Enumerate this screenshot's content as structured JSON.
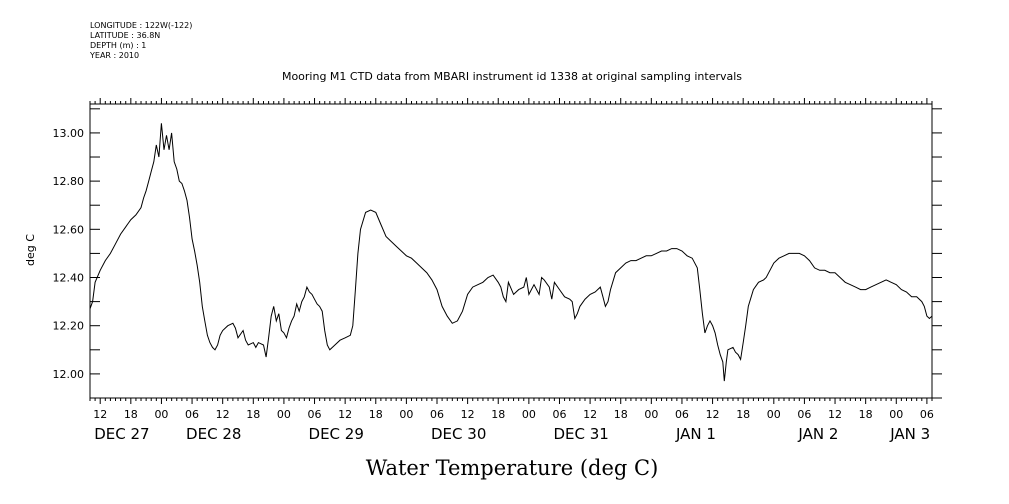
{
  "meta": {
    "longitude": "LONGITUDE : 122W(-122)",
    "latitude": "LATITUDE : 36.8N",
    "depth": "DEPTH (m) : 1",
    "year": "YEAR : 2010"
  },
  "chart_data": {
    "type": "line",
    "title": "Mooring M1 CTD data from MBARI instrument id 1338 at original sampling intervals",
    "xlabel": "Water Temperature (deg C)",
    "ylabel": "deg C",
    "xlim": [
      10,
      175
    ],
    "ylim": [
      11.9,
      13.12
    ],
    "yticks": [
      "12.00",
      "12.20",
      "12.40",
      "12.60",
      "12.80",
      "13.00"
    ],
    "hour_labels": [
      {
        "t": 12,
        "label": "12"
      },
      {
        "t": 18,
        "label": "18"
      },
      {
        "t": 24,
        "label": "00"
      },
      {
        "t": 30,
        "label": "06"
      },
      {
        "t": 36,
        "label": "12"
      },
      {
        "t": 42,
        "label": "18"
      },
      {
        "t": 48,
        "label": "00"
      },
      {
        "t": 54,
        "label": "06"
      },
      {
        "t": 60,
        "label": "12"
      },
      {
        "t": 66,
        "label": "18"
      },
      {
        "t": 72,
        "label": "00"
      },
      {
        "t": 78,
        "label": "06"
      },
      {
        "t": 84,
        "label": "12"
      },
      {
        "t": 90,
        "label": "18"
      },
      {
        "t": 96,
        "label": "00"
      },
      {
        "t": 102,
        "label": "06"
      },
      {
        "t": 108,
        "label": "12"
      },
      {
        "t": 114,
        "label": "18"
      },
      {
        "t": 120,
        "label": "00"
      },
      {
        "t": 126,
        "label": "06"
      },
      {
        "t": 132,
        "label": "12"
      },
      {
        "t": 138,
        "label": "18"
      },
      {
        "t": 144,
        "label": "00"
      },
      {
        "t": 150,
        "label": "06"
      },
      {
        "t": 156,
        "label": "12"
      },
      {
        "t": 162,
        "label": "18"
      },
      {
        "t": 168,
        "label": "00"
      },
      {
        "t": 174,
        "label": "06"
      }
    ],
    "day_labels": [
      {
        "t": 12,
        "label": "DEC 27"
      },
      {
        "t": 30,
        "label": "DEC 28"
      },
      {
        "t": 54,
        "label": "DEC 29"
      },
      {
        "t": 78,
        "label": "DEC 30"
      },
      {
        "t": 102,
        "label": "DEC 31"
      },
      {
        "t": 126,
        "label": "JAN  1"
      },
      {
        "t": 150,
        "label": "JAN  2"
      },
      {
        "t": 168,
        "label": "JAN  3"
      }
    ],
    "series": [
      {
        "color": "#000000",
        "points": [
          [
            10.0,
            12.27
          ],
          [
            10.5,
            12.3
          ],
          [
            11.0,
            12.38
          ],
          [
            12.0,
            12.43
          ],
          [
            13.0,
            12.47
          ],
          [
            14.0,
            12.5
          ],
          [
            15.0,
            12.54
          ],
          [
            16.0,
            12.58
          ],
          [
            17.0,
            12.61
          ],
          [
            18.0,
            12.64
          ],
          [
            19.0,
            12.66
          ],
          [
            20.0,
            12.69
          ],
          [
            20.5,
            12.73
          ],
          [
            21.0,
            12.76
          ],
          [
            21.5,
            12.8
          ],
          [
            22.0,
            12.84
          ],
          [
            22.5,
            12.88
          ],
          [
            23.0,
            12.95
          ],
          [
            23.5,
            12.9
          ],
          [
            24.0,
            13.04
          ],
          [
            24.5,
            12.93
          ],
          [
            25.0,
            12.99
          ],
          [
            25.5,
            12.93
          ],
          [
            26.0,
            13.0
          ],
          [
            26.5,
            12.88
          ],
          [
            27.0,
            12.85
          ],
          [
            27.5,
            12.8
          ],
          [
            28.0,
            12.79
          ],
          [
            28.5,
            12.76
          ],
          [
            29.0,
            12.72
          ],
          [
            29.5,
            12.65
          ],
          [
            30.0,
            12.56
          ],
          [
            30.5,
            12.51
          ],
          [
            31.0,
            12.45
          ],
          [
            31.5,
            12.38
          ],
          [
            32.0,
            12.28
          ],
          [
            32.5,
            12.22
          ],
          [
            33.0,
            12.16
          ],
          [
            33.5,
            12.13
          ],
          [
            34.0,
            12.11
          ],
          [
            34.5,
            12.1
          ],
          [
            35.0,
            12.12
          ],
          [
            35.5,
            12.16
          ],
          [
            36.0,
            12.18
          ],
          [
            37.0,
            12.2
          ],
          [
            38.0,
            12.21
          ],
          [
            38.5,
            12.19
          ],
          [
            39.0,
            12.15
          ],
          [
            40.0,
            12.18
          ],
          [
            40.5,
            12.14
          ],
          [
            41.0,
            12.12
          ],
          [
            42.0,
            12.13
          ],
          [
            42.5,
            12.11
          ],
          [
            43.0,
            12.13
          ],
          [
            44.0,
            12.12
          ],
          [
            44.5,
            12.07
          ],
          [
            45.0,
            12.15
          ],
          [
            45.5,
            12.24
          ],
          [
            46.0,
            12.28
          ],
          [
            46.5,
            12.22
          ],
          [
            47.0,
            12.25
          ],
          [
            47.5,
            12.18
          ],
          [
            48.0,
            12.17
          ],
          [
            48.5,
            12.15
          ],
          [
            49.0,
            12.19
          ],
          [
            49.5,
            12.22
          ],
          [
            50.0,
            12.24
          ],
          [
            50.5,
            12.29
          ],
          [
            51.0,
            12.26
          ],
          [
            51.5,
            12.3
          ],
          [
            52.0,
            12.32
          ],
          [
            52.5,
            12.36
          ],
          [
            53.0,
            12.34
          ],
          [
            53.5,
            12.33
          ],
          [
            54.0,
            12.31
          ],
          [
            54.5,
            12.29
          ],
          [
            55.0,
            12.28
          ],
          [
            55.5,
            12.26
          ],
          [
            56.0,
            12.18
          ],
          [
            56.5,
            12.12
          ],
          [
            57.0,
            12.1
          ],
          [
            58.0,
            12.12
          ],
          [
            59.0,
            12.14
          ],
          [
            60.0,
            12.15
          ],
          [
            61.0,
            12.16
          ],
          [
            61.5,
            12.2
          ],
          [
            62.0,
            12.35
          ],
          [
            62.5,
            12.5
          ],
          [
            63.0,
            12.6
          ],
          [
            64.0,
            12.67
          ],
          [
            65.0,
            12.68
          ],
          [
            66.0,
            12.67
          ],
          [
            67.0,
            12.62
          ],
          [
            68.0,
            12.57
          ],
          [
            69.0,
            12.55
          ],
          [
            70.0,
            12.53
          ],
          [
            71.0,
            12.51
          ],
          [
            72.0,
            12.49
          ],
          [
            73.0,
            12.48
          ],
          [
            74.0,
            12.46
          ],
          [
            75.0,
            12.44
          ],
          [
            76.0,
            12.42
          ],
          [
            77.0,
            12.39
          ],
          [
            78.0,
            12.35
          ],
          [
            79.0,
            12.28
          ],
          [
            80.0,
            12.24
          ],
          [
            81.0,
            12.21
          ],
          [
            82.0,
            12.22
          ],
          [
            83.0,
            12.26
          ],
          [
            84.0,
            12.33
          ],
          [
            85.0,
            12.36
          ],
          [
            86.0,
            12.37
          ],
          [
            87.0,
            12.38
          ],
          [
            88.0,
            12.4
          ],
          [
            89.0,
            12.41
          ],
          [
            90.0,
            12.38
          ],
          [
            90.5,
            12.36
          ],
          [
            91.0,
            12.32
          ],
          [
            91.5,
            12.3
          ],
          [
            92.0,
            12.38
          ],
          [
            93.0,
            12.33
          ],
          [
            94.0,
            12.35
          ],
          [
            95.0,
            12.36
          ],
          [
            95.5,
            12.4
          ],
          [
            96.0,
            12.33
          ],
          [
            97.0,
            12.37
          ],
          [
            98.0,
            12.33
          ],
          [
            98.5,
            12.4
          ],
          [
            99.0,
            12.39
          ],
          [
            100.0,
            12.36
          ],
          [
            100.5,
            12.31
          ],
          [
            101.0,
            12.38
          ],
          [
            102.0,
            12.35
          ],
          [
            103.0,
            12.32
          ],
          [
            104.0,
            12.31
          ],
          [
            104.5,
            12.3
          ],
          [
            105.0,
            12.23
          ],
          [
            105.5,
            12.25
          ],
          [
            106.0,
            12.28
          ],
          [
            107.0,
            12.31
          ],
          [
            108.0,
            12.33
          ],
          [
            109.0,
            12.34
          ],
          [
            110.0,
            12.36
          ],
          [
            110.5,
            12.32
          ],
          [
            111.0,
            12.28
          ],
          [
            111.5,
            12.3
          ],
          [
            112.0,
            12.35
          ],
          [
            113.0,
            12.42
          ],
          [
            114.0,
            12.44
          ],
          [
            115.0,
            12.46
          ],
          [
            116.0,
            12.47
          ],
          [
            117.0,
            12.47
          ],
          [
            118.0,
            12.48
          ],
          [
            119.0,
            12.49
          ],
          [
            120.0,
            12.49
          ],
          [
            121.0,
            12.5
          ],
          [
            122.0,
            12.51
          ],
          [
            123.0,
            12.51
          ],
          [
            124.0,
            12.52
          ],
          [
            125.0,
            12.52
          ],
          [
            126.0,
            12.51
          ],
          [
            127.0,
            12.49
          ],
          [
            128.0,
            12.48
          ],
          [
            129.0,
            12.44
          ],
          [
            129.5,
            12.35
          ],
          [
            130.0,
            12.25
          ],
          [
            130.5,
            12.17
          ],
          [
            131.0,
            12.2
          ],
          [
            131.5,
            12.22
          ],
          [
            132.0,
            12.2
          ],
          [
            132.5,
            12.17
          ],
          [
            133.0,
            12.12
          ],
          [
            133.5,
            12.08
          ],
          [
            134.0,
            12.05
          ],
          [
            134.3,
            11.97
          ],
          [
            134.7,
            12.05
          ],
          [
            135.0,
            12.1
          ],
          [
            136.0,
            12.11
          ],
          [
            136.5,
            12.09
          ],
          [
            137.0,
            12.08
          ],
          [
            137.5,
            12.06
          ],
          [
            138.0,
            12.13
          ],
          [
            138.5,
            12.2
          ],
          [
            139.0,
            12.28
          ],
          [
            140.0,
            12.35
          ],
          [
            141.0,
            12.38
          ],
          [
            142.0,
            12.39
          ],
          [
            142.5,
            12.4
          ],
          [
            143.0,
            12.42
          ],
          [
            144.0,
            12.46
          ],
          [
            145.0,
            12.48
          ],
          [
            146.0,
            12.49
          ],
          [
            147.0,
            12.5
          ],
          [
            148.0,
            12.5
          ],
          [
            149.0,
            12.5
          ],
          [
            150.0,
            12.49
          ],
          [
            151.0,
            12.47
          ],
          [
            152.0,
            12.44
          ],
          [
            153.0,
            12.43
          ],
          [
            154.0,
            12.43
          ],
          [
            155.0,
            12.42
          ],
          [
            156.0,
            12.42
          ],
          [
            157.0,
            12.4
          ],
          [
            158.0,
            12.38
          ],
          [
            159.0,
            12.37
          ],
          [
            160.0,
            12.36
          ],
          [
            161.0,
            12.35
          ],
          [
            162.0,
            12.35
          ],
          [
            163.0,
            12.36
          ],
          [
            164.0,
            12.37
          ],
          [
            165.0,
            12.38
          ],
          [
            166.0,
            12.39
          ],
          [
            167.0,
            12.38
          ],
          [
            168.0,
            12.37
          ],
          [
            169.0,
            12.35
          ],
          [
            170.0,
            12.34
          ],
          [
            171.0,
            12.32
          ],
          [
            172.0,
            12.32
          ],
          [
            173.0,
            12.3
          ],
          [
            173.5,
            12.28
          ],
          [
            174.0,
            12.24
          ],
          [
            174.5,
            12.23
          ],
          [
            175.0,
            12.24
          ]
        ]
      }
    ]
  }
}
